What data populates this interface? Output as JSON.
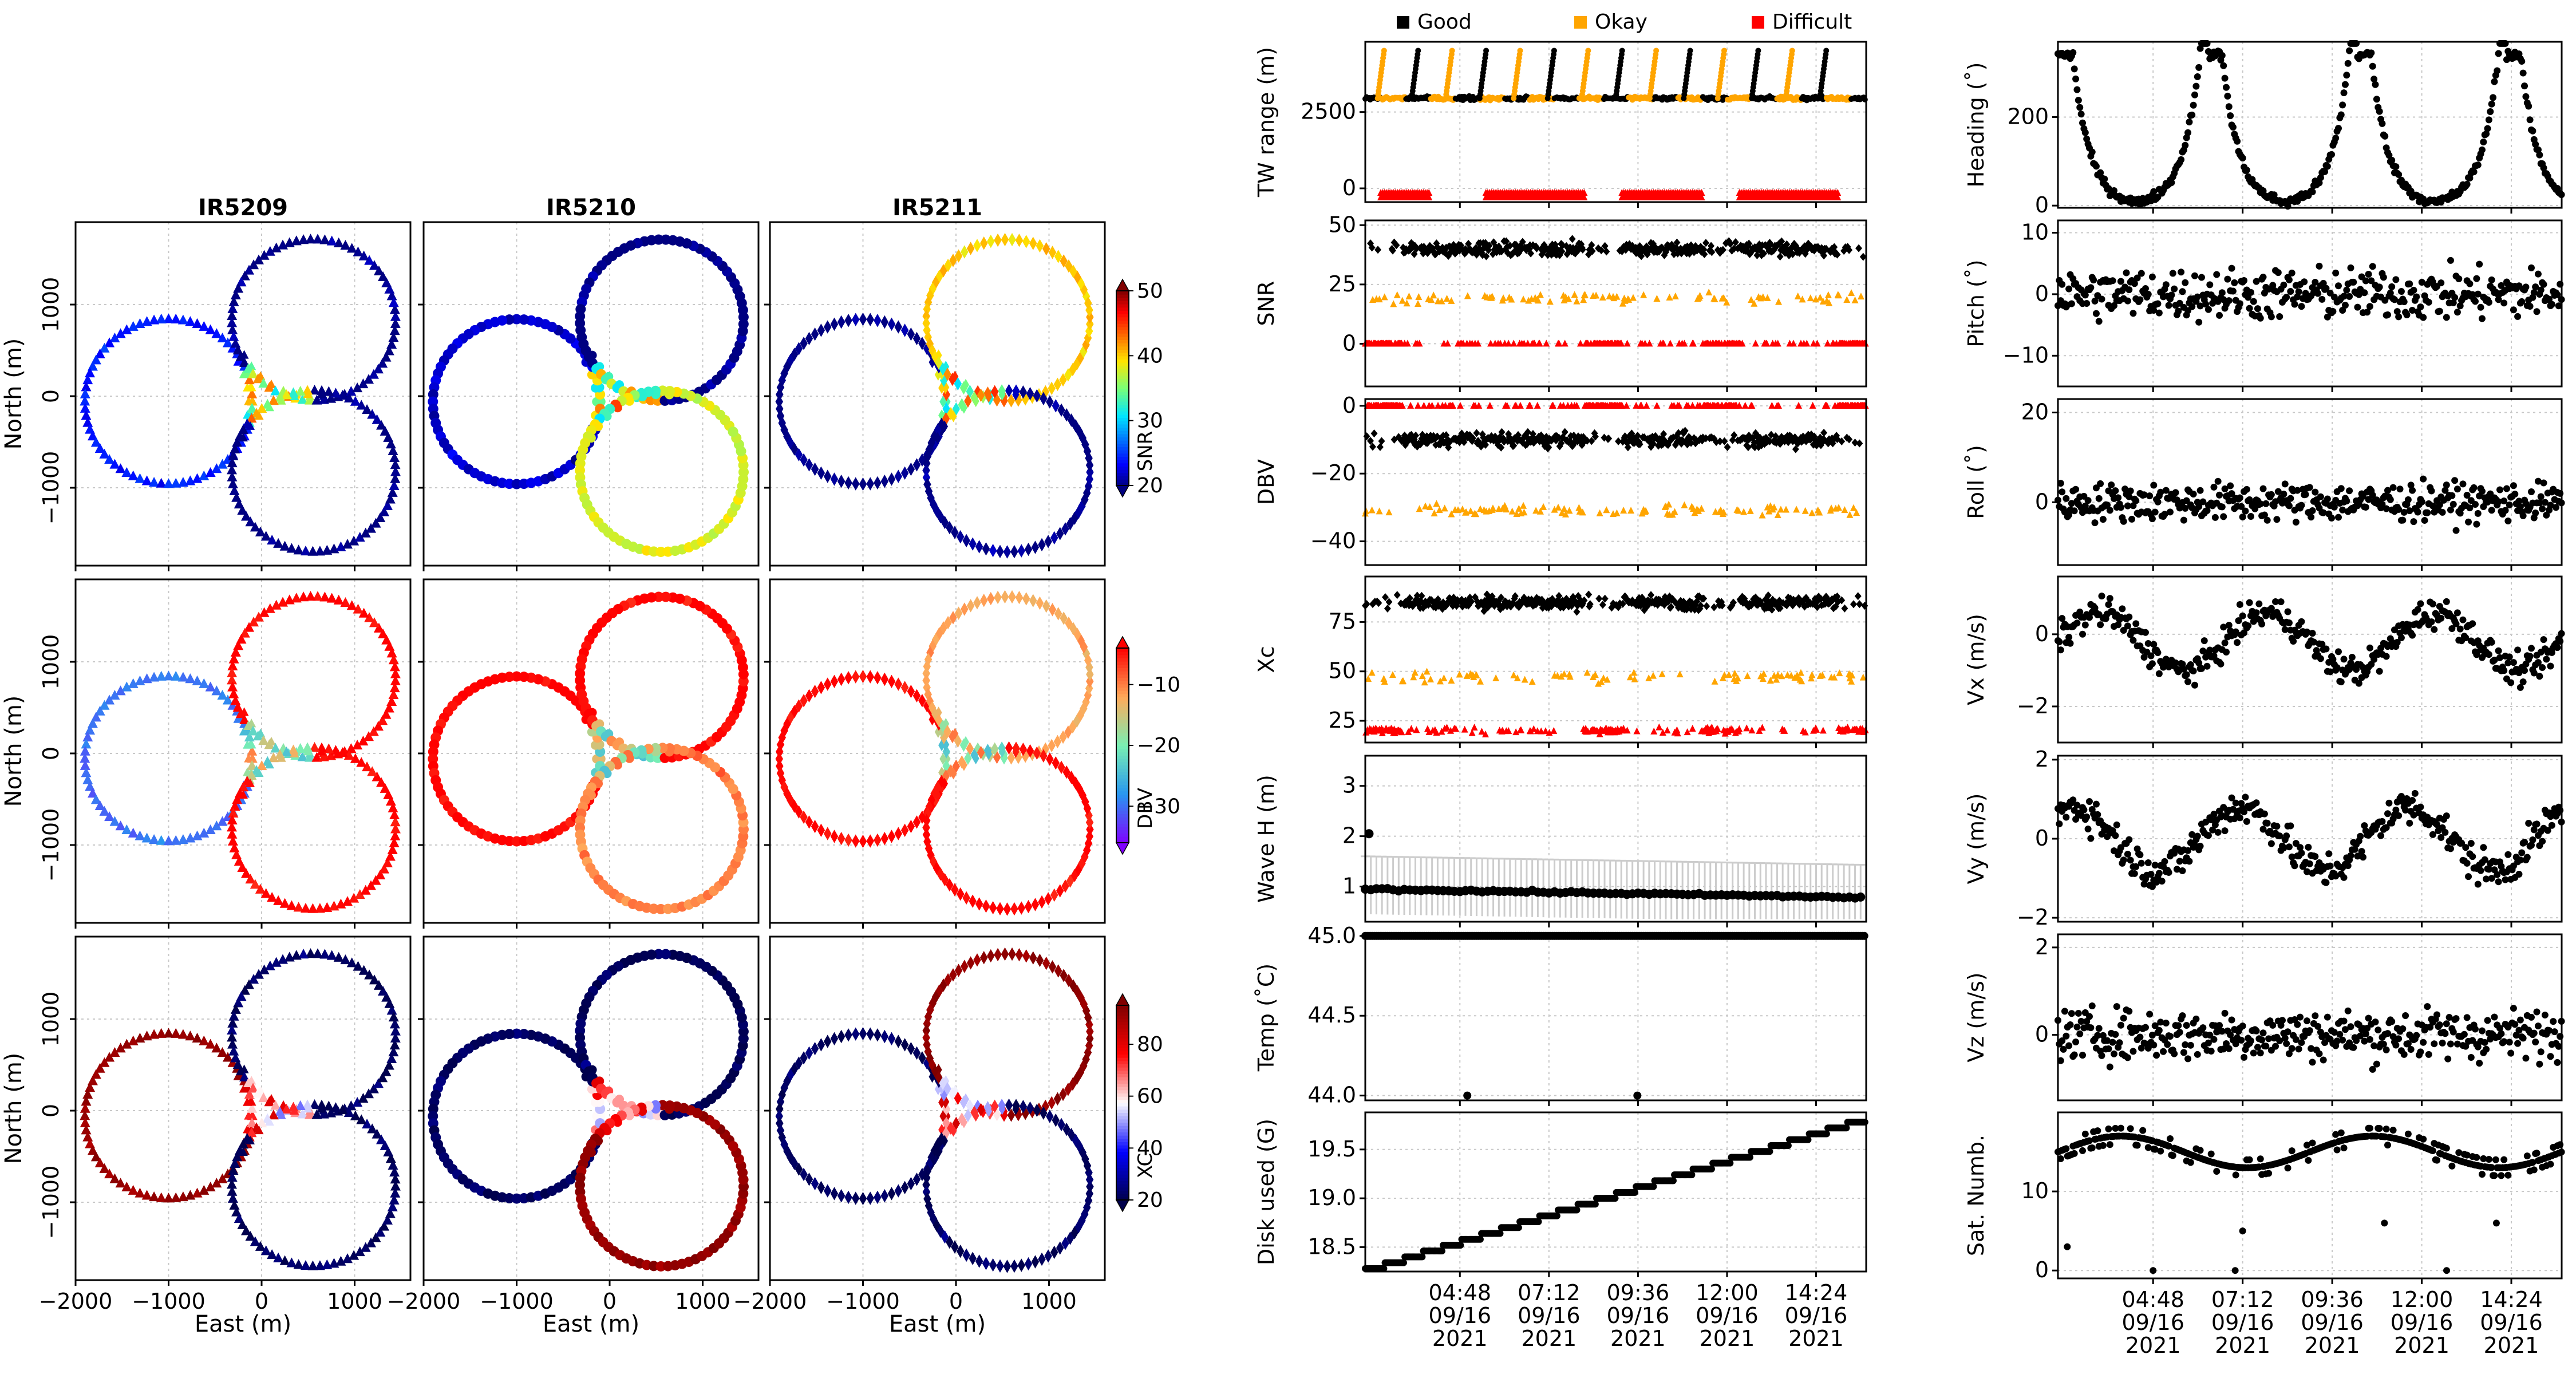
{
  "colors": {
    "good": "#000000",
    "okay": "#ffa500",
    "difficult": "#ff0000",
    "grid": "#c8c8c8",
    "wave_error": "#cccccc"
  },
  "legend": {
    "good": "Good",
    "okay": "Okay",
    "difficult": "Difficult"
  },
  "chart_data": [
    {
      "id": "position-maps",
      "type": "scatter",
      "layout": "3x3 grid of track maps",
      "columns": [
        "IR5209",
        "IR5210",
        "IR5211"
      ],
      "markers": {
        "IR5209": "triangle",
        "IR5210": "circle",
        "IR5211": "diamond"
      },
      "xlabel": "East (m)",
      "ylabel": "North (m)",
      "xlim": [
        -2000,
        1600
      ],
      "ylim": [
        -1850,
        1900
      ],
      "xticks": [
        -2000,
        -1000,
        0,
        1000
      ],
      "yticks": [
        -1000,
        0,
        1000
      ],
      "tracks": [
        {
          "name": "west circle",
          "center": [
            -1000,
            -60
          ],
          "radius": 900
        },
        {
          "name": "north circle",
          "center": [
            560,
            830
          ],
          "radius": 880
        },
        {
          "name": "south circle",
          "center": [
            560,
            -820
          ],
          "radius": 880
        }
      ],
      "rows": [
        {
          "variable": "SNR",
          "colormap": "jet",
          "clim": [
            20,
            50
          ],
          "colorbar_ticks": [
            20,
            30,
            40,
            50
          ],
          "label": "SNR",
          "values_by_track": {
            "IR5209": {
              "west circle": 24,
              "north circle": 20,
              "south circle": 20
            },
            "IR5210": {
              "west circle": 22,
              "north circle": 20,
              "south circle": 38
            },
            "IR5211": {
              "west circle": 20,
              "north circle": 40,
              "south circle": 20
            }
          }
        },
        {
          "variable": "DBV",
          "colormap": "rainbow",
          "clim": [
            -36,
            -4
          ],
          "colorbar_ticks": [
            -30,
            -20,
            -10
          ],
          "label": "DBV",
          "values_by_track": {
            "IR5209": {
              "west circle": -30,
              "north circle": -4,
              "south circle": -4
            },
            "IR5210": {
              "west circle": -4,
              "north circle": -4,
              "south circle": -10
            },
            "IR5211": {
              "west circle": -4,
              "north circle": -12,
              "south circle": -4
            }
          }
        },
        {
          "variable": "XC",
          "colormap": "seismic",
          "clim": [
            20,
            95
          ],
          "colorbar_ticks": [
            20,
            40,
            60,
            80
          ],
          "label": "XC",
          "values_by_track": {
            "IR5209": {
              "west circle": 92,
              "north circle": 22,
              "south circle": 22
            },
            "IR5210": {
              "west circle": 22,
              "north circle": 22,
              "south circle": 92
            },
            "IR5211": {
              "west circle": 22,
              "north circle": 92,
              "south circle": 22
            }
          }
        }
      ]
    },
    {
      "id": "acoustic-timeseries",
      "type": "scatter",
      "x_axis": "time",
      "xlim": [
        "2021-09-16 02:15",
        "2021-09-16 15:45"
      ],
      "xticks": [
        "04:48\n09/16\n2021",
        "07:12\n09/16\n2021",
        "09:36\n09/16\n2021",
        "12:00\n09/16\n2021",
        "14:24\n09/16\n2021"
      ],
      "legend_location": "top",
      "panels": [
        {
          "ylabel": "TW range (m)",
          "ylim": [
            -450,
            4800
          ],
          "yticks": [
            "0",
            "2500"
          ],
          "series": [
            {
              "name": "Good",
              "level": 2950
            },
            {
              "name": "Okay",
              "level": 2950
            },
            {
              "name": "Difficult",
              "levels": [
                -150,
                -300
              ]
            }
          ]
        },
        {
          "ylabel": "SNR",
          "ylim": [
            -18,
            52
          ],
          "yticks": [
            "0",
            "25",
            "50"
          ],
          "series": [
            {
              "name": "Good",
              "level": 40
            },
            {
              "name": "Okay",
              "level": 19
            },
            {
              "name": "Difficult",
              "level": 0
            }
          ]
        },
        {
          "ylabel": "DBV",
          "ylim": [
            -47,
            2
          ],
          "yticks": [
            "-40",
            "-20",
            "0"
          ],
          "series": [
            {
              "name": "Good",
              "level": -10
            },
            {
              "name": "Okay",
              "level": -31
            },
            {
              "name": "Difficult",
              "level": 0
            }
          ]
        },
        {
          "ylabel": "Xc",
          "ylim": [
            14,
            98
          ],
          "yticks": [
            "25",
            "50",
            "75"
          ],
          "series": [
            {
              "name": "Good",
              "level": 85
            },
            {
              "name": "Okay",
              "level": 47
            },
            {
              "name": "Difficult",
              "level": 20
            }
          ]
        },
        {
          "ylabel": "Wave H (m)",
          "ylim": [
            0.3,
            3.6
          ],
          "yticks": [
            "1",
            "2",
            "3"
          ],
          "series": [
            {
              "name": "Good",
              "level_start": 0.95,
              "level_end": 0.78
            }
          ]
        },
        {
          "ylabel": "Temp (˚C)",
          "ylim": [
            43.97,
            45.01
          ],
          "yticks": [
            "44.0",
            "44.5",
            "45.0"
          ],
          "series": [
            {
              "name": "Good",
              "level": 45.0,
              "outliers": [
                [
                  "2021-09-16 05:00",
                  44.0
                ],
                [
                  "2021-09-16 09:35",
                  44.0
                ]
              ]
            }
          ]
        },
        {
          "ylabel": "Disk used (G)",
          "ylim": [
            18.25,
            19.88
          ],
          "yticks": [
            "18.5",
            "19.0",
            "19.5"
          ],
          "series": [
            {
              "name": "Good",
              "start": 18.28,
              "end": 19.84,
              "step": 0.06
            }
          ]
        }
      ]
    },
    {
      "id": "motion-timeseries",
      "type": "scatter",
      "x_axis": "time",
      "xlim": [
        "2021-09-16 02:15",
        "2021-09-16 15:45"
      ],
      "xticks": [
        "04:48\n09/16\n2021",
        "07:12\n09/16\n2021",
        "09:36\n09/16\n2021",
        "12:00\n09/16\n2021",
        "14:24\n09/16\n2021"
      ],
      "panels": [
        {
          "ylabel": "Heading (˚)",
          "ylim": [
            -5,
            370
          ],
          "yticks": [
            "0",
            "200"
          ]
        },
        {
          "ylabel": "Pitch (˚)",
          "ylim": [
            -15,
            12
          ],
          "yticks": [
            "-10",
            "0",
            "10"
          ]
        },
        {
          "ylabel": "Roll (˚)",
          "ylim": [
            -14,
            23
          ],
          "yticks": [
            "0",
            "20"
          ]
        },
        {
          "ylabel": "Vx (m/s)",
          "ylim": [
            -3,
            1.6
          ],
          "yticks": [
            "-2",
            "0"
          ]
        },
        {
          "ylabel": "Vy (m/s)",
          "ylim": [
            -2.1,
            2.1
          ],
          "yticks": [
            "-2",
            "0",
            "2"
          ]
        },
        {
          "ylabel": "Vz (m/s)",
          "ylim": [
            -1.5,
            2.3
          ],
          "yticks": [
            "0",
            "2"
          ]
        },
        {
          "ylabel": "Sat. Numb.",
          "ylim": [
            -1,
            20
          ],
          "yticks": [
            "0",
            "10"
          ]
        }
      ]
    }
  ]
}
